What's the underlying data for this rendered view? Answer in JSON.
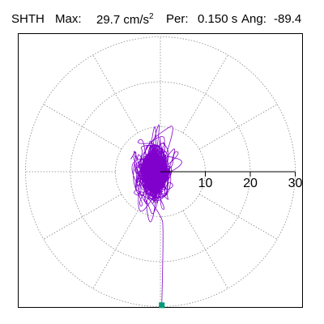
{
  "header": {
    "station": "SHTH",
    "max_label": "Max:",
    "max_value": "29.7 cm/s",
    "max_unit_exp": "2",
    "period_label": "Per:",
    "period_value": "0.150 s",
    "angle_label": "Ang:",
    "angle_value": "-89.4"
  },
  "colors": {
    "trace": "#8000cc",
    "marker": "#009977",
    "grid": "#888888",
    "axis": "#000000"
  },
  "chart_data": {
    "type": "scatter",
    "subtype": "polar-particle-motion",
    "radial_ticks": [
      10,
      20,
      30
    ],
    "radial_tick_labels": [
      "10",
      "20",
      "30"
    ],
    "r_max": 30,
    "grid": true,
    "spoke_angle_step_deg": 30,
    "peak_point": {
      "r": 29.7,
      "angle_deg": -89.4
    },
    "trace": {
      "start_angle_deg": -89.4,
      "start_r": 29.7,
      "samples": 1400
    }
  }
}
